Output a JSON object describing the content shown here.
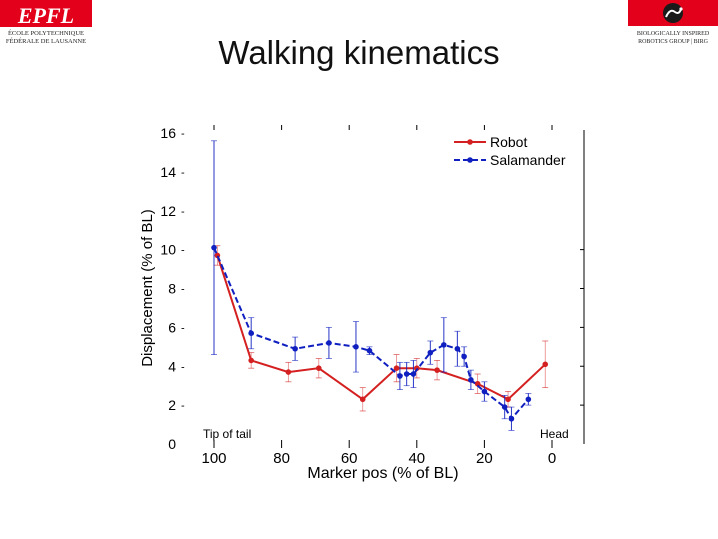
{
  "slide": {
    "title": "Walking kinematics",
    "logo_left": {
      "letters": "EPFL",
      "line1": "ÉCOLE POLYTECHNIQUE",
      "line2": "FÉDÉRALE DE LAUSANNE"
    },
    "logo_right": {
      "line1": "BIOLOGICALLY INSPIRED",
      "line2": "ROBOTICS GROUP | BIRG"
    }
  },
  "colors": {
    "robot": "#d42020",
    "salamander": "#1020c0",
    "brand_red": "#e2001a"
  },
  "chart_data": {
    "type": "line",
    "xlabel": "Marker pos (% of BL)",
    "ylabel": "Displacement (% of BL)",
    "xlim": [
      100,
      0
    ],
    "ylim": [
      0,
      16
    ],
    "xticks": [
      100,
      80,
      60,
      40,
      20,
      0
    ],
    "yticks": [
      0,
      2,
      4,
      6,
      8,
      10,
      12,
      14,
      16
    ],
    "legend_position": "top-right",
    "annotations": {
      "left": "Tip of tail",
      "right": "Head"
    },
    "series": [
      {
        "name": "Robot",
        "color": "#d42020",
        "style": "solid",
        "x": [
          99,
          89,
          78,
          69,
          56,
          46,
          40,
          34,
          22,
          13,
          2
        ],
        "y": [
          9.7,
          4.3,
          3.7,
          3.9,
          2.3,
          3.9,
          3.9,
          3.8,
          3.1,
          2.3,
          4.1
        ],
        "yerr": [
          0.5,
          0.4,
          0.5,
          0.5,
          0.6,
          0.7,
          0.5,
          0.5,
          0.5,
          0.4,
          1.2
        ]
      },
      {
        "name": "Salamander",
        "color": "#1020c0",
        "style": "dashed",
        "x": [
          100,
          89,
          76,
          66,
          58,
          54,
          45,
          43,
          41,
          36,
          32,
          28,
          26,
          24,
          20,
          14,
          12,
          7
        ],
        "y": [
          10.1,
          5.7,
          4.9,
          5.2,
          5.0,
          4.8,
          3.5,
          3.6,
          3.6,
          4.7,
          5.1,
          4.9,
          4.5,
          3.3,
          2.7,
          1.9,
          1.3,
          2.3
        ],
        "yerr": [
          5.5,
          0.8,
          0.6,
          0.8,
          1.3,
          0.2,
          0.7,
          0.6,
          0.7,
          0.6,
          1.4,
          0.9,
          0.5,
          0.5,
          0.5,
          0.6,
          0.6,
          0.3
        ]
      }
    ]
  }
}
